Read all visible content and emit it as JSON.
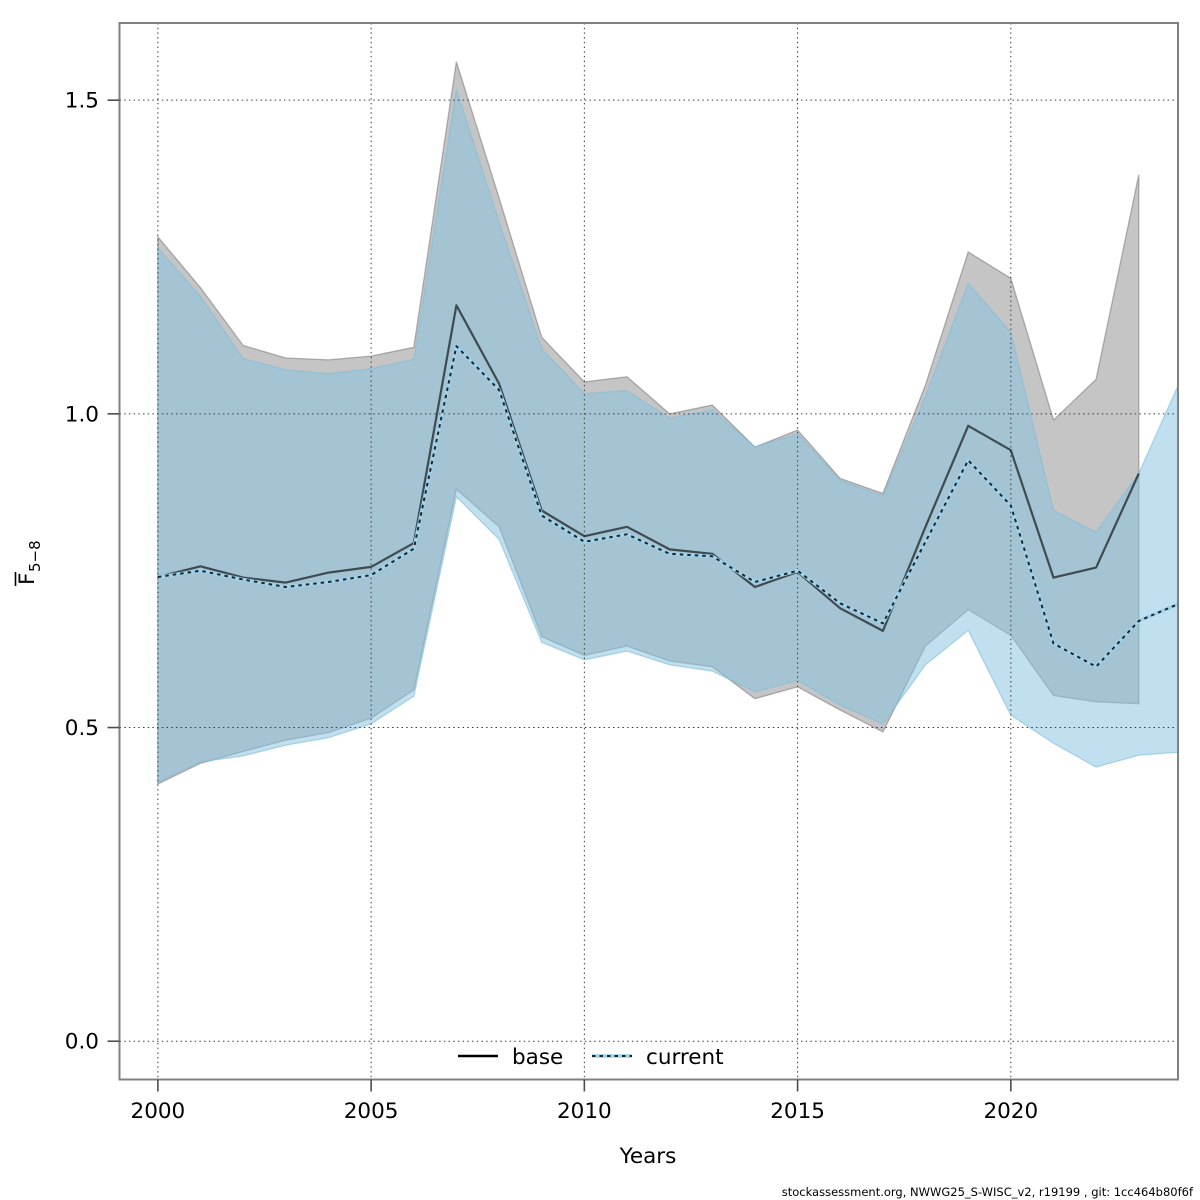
{
  "page": {
    "background": "#ffffff"
  },
  "footer": {
    "credit": "stockassessment.org, NWWG25_S-WISC_v2, r19199 , git: 1cc464b80f6f"
  },
  "chart_data": {
    "type": "line",
    "title": "",
    "xlabel": "Years",
    "ylabel_parts": {
      "main": "F",
      "sub": "5−8",
      "overbar": true
    },
    "grid": true,
    "legend": {
      "position": "bottom-center",
      "entries": [
        "base",
        "current"
      ]
    },
    "xlim": [
      1999.1,
      2023.92
    ],
    "ylim": [
      -0.061,
      1.623
    ],
    "xticks": [
      2000,
      2005,
      2010,
      2015,
      2020
    ],
    "xtick_labels": [
      "2000",
      "2005",
      "2010",
      "2015",
      "2020"
    ],
    "yticks": [
      0.0,
      0.5,
      1.0,
      1.5
    ],
    "ytick_labels": [
      "0.0",
      "0.5",
      "1.0",
      "1.5"
    ],
    "x": [
      2000,
      2001,
      2002,
      2003,
      2004,
      2005,
      2006,
      2007,
      2008,
      2009,
      2010,
      2011,
      2012,
      2013,
      2014,
      2015,
      2016,
      2017,
      2018,
      2019,
      2020,
      2021,
      2022,
      2023,
      2024
    ],
    "series": [
      {
        "name": "base",
        "style": "solid",
        "color": "rgba(0,0,0,0.62)",
        "legend_color": "#000000",
        "width": 2.2,
        "values": [
          0.74,
          0.757,
          0.739,
          0.731,
          0.747,
          0.756,
          0.794,
          1.173,
          1.048,
          0.846,
          0.805,
          0.82,
          0.784,
          0.777,
          0.724,
          0.748,
          0.69,
          0.654,
          0.82,
          0.981,
          0.942,
          0.739,
          0.755,
          0.905,
          null
        ]
      },
      {
        "name": "current",
        "style": "dotted",
        "color": "rgba(0,0,0,0.82)",
        "halo_color": "#9fd3ec",
        "width": 2,
        "values": [
          0.74,
          0.75,
          0.736,
          0.724,
          0.732,
          0.743,
          0.785,
          1.108,
          1.038,
          0.838,
          0.796,
          0.808,
          0.777,
          0.773,
          0.732,
          0.75,
          0.698,
          0.666,
          0.796,
          0.926,
          0.854,
          0.634,
          0.597,
          0.67,
          0.699
        ]
      }
    ],
    "bands": [
      {
        "name": "base-confidence-band",
        "fill": "rgba(128,128,128,0.46)",
        "stroke": "rgba(118,118,118,0.55)",
        "lower": [
          0.41,
          0.443,
          0.462,
          0.48,
          0.492,
          0.515,
          0.56,
          0.88,
          0.82,
          0.645,
          0.615,
          0.63,
          0.606,
          0.597,
          0.546,
          0.565,
          0.528,
          0.493,
          0.63,
          0.688,
          0.647,
          0.551,
          0.541,
          0.538,
          null
        ],
        "upper": [
          1.282,
          1.201,
          1.109,
          1.089,
          1.086,
          1.092,
          1.106,
          1.561,
          1.344,
          1.122,
          1.051,
          1.059,
          1.0,
          1.014,
          0.947,
          0.974,
          0.897,
          0.873,
          1.046,
          1.258,
          1.216,
          0.99,
          1.055,
          1.381,
          null
        ]
      },
      {
        "name": "current-confidence-band",
        "fill": "rgba(134,196,226,0.52)",
        "stroke": "rgba(128,188,219,0.6)",
        "lower": [
          0.413,
          0.445,
          0.455,
          0.472,
          0.484,
          0.506,
          0.55,
          0.868,
          0.8,
          0.636,
          0.608,
          0.622,
          0.6,
          0.59,
          0.557,
          0.575,
          0.536,
          0.506,
          0.6,
          0.655,
          0.52,
          0.475,
          0.437,
          0.456,
          0.461
        ],
        "upper": [
          1.264,
          1.187,
          1.088,
          1.07,
          1.064,
          1.072,
          1.087,
          1.516,
          1.306,
          1.104,
          1.032,
          1.037,
          0.993,
          1.006,
          0.947,
          0.968,
          0.894,
          0.869,
          1.028,
          1.208,
          1.13,
          0.846,
          0.811,
          0.905,
          1.057
        ]
      }
    ],
    "style": {
      "plot_border_color": "#808080",
      "grid_color": "#3c3c3c",
      "tick_color": "#4d4d4d"
    }
  }
}
